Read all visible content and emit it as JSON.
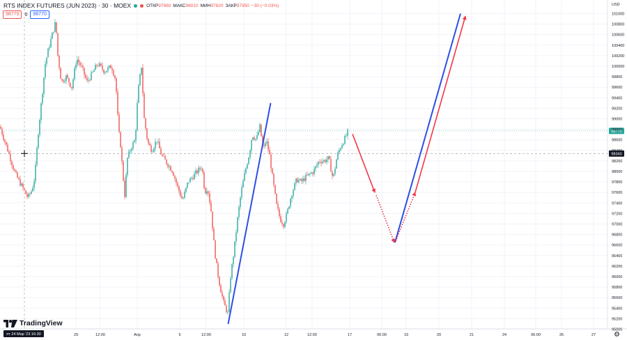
{
  "header": {
    "title": "RTS INDEX FUTURES (JUN 2023) · 30 · MOEX",
    "open_label": "ОТКР",
    "open_value": "97980",
    "high_label": "МАКС",
    "high_value": "98010",
    "low_label": "МИН",
    "low_value": "97820",
    "close_label": "ЗАКР",
    "close_value": "97950",
    "change": "−30 (−0.03%)",
    "bid_price": "98770",
    "spread": "0",
    "ask_price": "98770",
    "status_colors": [
      "#26a69a",
      "#ef5350"
    ]
  },
  "branding": {
    "logo_text": "TradingView"
  },
  "currency": "USD",
  "chart_data": {
    "type": "candlestick",
    "symbol": "RTS INDEX FUTURES (JUN 2023)",
    "interval": "30",
    "exchange": "MOEX",
    "y_ticks": [
      101000,
      100800,
      100600,
      100400,
      100200,
      100000,
      99800,
      99600,
      99400,
      99200,
      99000,
      98800,
      98600,
      98400,
      98200,
      98000,
      97800,
      97600,
      97400,
      97200,
      97000,
      96800,
      96600,
      96400,
      96200,
      96000,
      95800,
      95600,
      95400,
      95200,
      95000
    ],
    "y_tick_labels": [
      "101000",
      "100800",
      "100600",
      "100400",
      "100200",
      "100000",
      "99800",
      "99600",
      "99400",
      "99200",
      "99000",
      "98800",
      "98600",
      "98400",
      "98200",
      "98000",
      "97800",
      "97600",
      "97400",
      "97200",
      "97000",
      "96800",
      "96600",
      "96400",
      "96200",
      "96000",
      "95800",
      "95600",
      "95400",
      "95200",
      "95000"
    ],
    "ylim": [
      94950,
      101250
    ],
    "x_tick_labels": [
      "29",
      "12:00",
      "Апр",
      "5",
      "12:00",
      "10",
      "12",
      "12:00",
      "17",
      "06:00",
      "19",
      "20",
      "21",
      "24",
      "06:00",
      "26",
      "27"
    ],
    "crosshair_date_label": "пт 24 Мар '23  16:30",
    "current_price_label": "98770",
    "current_price": 98770,
    "cursor_price_label": "98340",
    "cursor_price": 98340,
    "candles_anchor_path": [
      [
        0,
        98850
      ],
      [
        5,
        98650
      ],
      [
        10,
        98450
      ],
      [
        16,
        98200
      ],
      [
        22,
        97950
      ],
      [
        28,
        97800
      ],
      [
        34,
        97650
      ],
      [
        40,
        97500
      ],
      [
        46,
        97650
      ],
      [
        50,
        97900
      ],
      [
        52,
        98250
      ],
      [
        55,
        98750
      ],
      [
        60,
        99400
      ],
      [
        65,
        100050
      ],
      [
        70,
        100350
      ],
      [
        75,
        100600
      ],
      [
        80,
        100850
      ],
      [
        83,
        100200
      ],
      [
        88,
        99700
      ],
      [
        95,
        99800
      ],
      [
        103,
        99600
      ],
      [
        110,
        100150
      ],
      [
        118,
        99950
      ],
      [
        125,
        99700
      ],
      [
        132,
        99850
      ],
      [
        140,
        100050
      ],
      [
        150,
        99900
      ],
      [
        160,
        100000
      ],
      [
        166,
        99750
      ],
      [
        170,
        98800
      ],
      [
        173,
        98500
      ],
      [
        176,
        98000
      ],
      [
        179,
        97550
      ],
      [
        183,
        98250
      ],
      [
        188,
        98450
      ],
      [
        194,
        98600
      ],
      [
        198,
        99500
      ],
      [
        203,
        100000
      ],
      [
        207,
        99000
      ],
      [
        212,
        98550
      ],
      [
        218,
        98400
      ],
      [
        225,
        98600
      ],
      [
        232,
        98300
      ],
      [
        240,
        98150
      ],
      [
        248,
        98000
      ],
      [
        255,
        97700
      ],
      [
        262,
        97450
      ],
      [
        270,
        97800
      ],
      [
        280,
        97950
      ],
      [
        290,
        98100
      ],
      [
        294,
        97600
      ],
      [
        298,
        97700
      ],
      [
        303,
        97250
      ],
      [
        308,
        96500
      ],
      [
        312,
        96100
      ],
      [
        316,
        95800
      ],
      [
        321,
        95500
      ],
      [
        327,
        95300
      ],
      [
        331,
        96000
      ],
      [
        336,
        96500
      ],
      [
        341,
        97100
      ],
      [
        346,
        97600
      ],
      [
        352,
        98000
      ],
      [
        358,
        98350
      ],
      [
        362,
        98700
      ],
      [
        368,
        98600
      ],
      [
        373,
        98850
      ],
      [
        378,
        98400
      ],
      [
        382,
        98600
      ],
      [
        387,
        98300
      ],
      [
        392,
        97800
      ],
      [
        397,
        97350
      ],
      [
        402,
        97100
      ],
      [
        407,
        97000
      ],
      [
        412,
        97200
      ],
      [
        418,
        97550
      ],
      [
        426,
        97850
      ],
      [
        432,
        97800
      ],
      [
        440,
        97900
      ],
      [
        450,
        98000
      ],
      [
        458,
        98200
      ],
      [
        465,
        98200
      ],
      [
        472,
        98250
      ],
      [
        478,
        97850
      ],
      [
        484,
        98300
      ],
      [
        490,
        98500
      ],
      [
        496,
        98650
      ],
      [
        500,
        98770
      ]
    ],
    "projection_path_red": [
      [
        506,
        98710
      ],
      [
        538,
        97600
      ],
      [
        566,
        96650
      ],
      [
        596,
        97600
      ],
      [
        668,
        100950
      ]
    ],
    "projection_path_blue": [
      [
        328,
        95100
      ],
      [
        389,
        99300
      ],
      [
        567,
        96650
      ],
      [
        661,
        101000
      ]
    ],
    "grid": true,
    "legend": "none"
  }
}
